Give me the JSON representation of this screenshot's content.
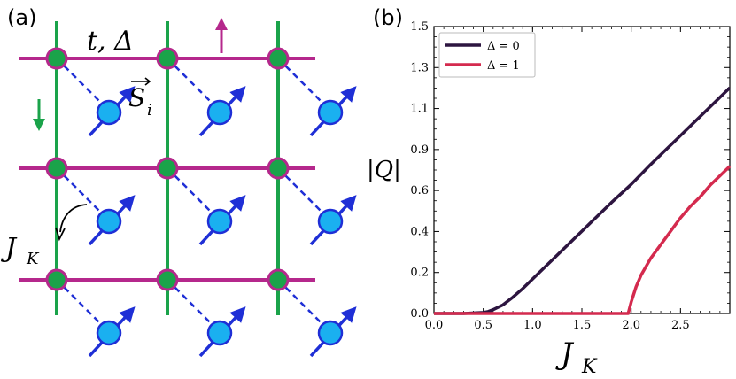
{
  "panel_a": {
    "label": "(a)",
    "hopping_label": "t, Δ",
    "spin_label": "S",
    "spin_subscript": "i",
    "kondo_label": "J",
    "kondo_subscript": "K",
    "colors": {
      "horizontal_bonds": "#b5288c",
      "vertical_bonds": "#1aa34a",
      "site_fill": "#1aa34a",
      "site_stroke": "#b5288c",
      "spin_fill": "#1ab0f0",
      "spin_stroke": "#1f2fd6",
      "arrow_up_magenta": "#b5288c",
      "arrow_down_green": "#1aa34a"
    },
    "icons": [
      "lattice-site-icon",
      "spin-arrow-icon",
      "hopping-direction-arrow-icon"
    ]
  },
  "panel_b": {
    "label": "(b)",
    "chart_data": {
      "type": "line",
      "xlabel": "J",
      "xlabel_subscript": "K",
      "ylabel": "|Q|",
      "xlim": [
        0.0,
        3.0
      ],
      "ylim": [
        0.0,
        1.5
      ],
      "x_ticks": [
        "0.0",
        "0.5",
        "1.0",
        "1.5",
        "2.0",
        "2.5"
      ],
      "y_ticks": [
        "0.0",
        "0.2",
        "0.4",
        "0.6",
        "0.9",
        "1.1",
        "1.3",
        "1.5"
      ],
      "legend_placement": "top-left",
      "series": [
        {
          "name": "Δ = 0",
          "color": "#2d1540",
          "x": [
            0.0,
            0.3,
            0.5,
            0.55,
            0.6,
            0.7,
            0.8,
            0.9,
            1.0,
            1.2,
            1.4,
            1.6,
            1.8,
            2.0,
            2.2,
            2.4,
            2.6,
            2.8,
            3.0
          ],
          "y": [
            0.0,
            0.0,
            0.005,
            0.01,
            0.02,
            0.045,
            0.085,
            0.13,
            0.18,
            0.28,
            0.38,
            0.48,
            0.58,
            0.675,
            0.78,
            0.88,
            0.98,
            1.08,
            1.18
          ]
        },
        {
          "name": "Δ = 1",
          "color": "#d42a4e",
          "x": [
            0.0,
            1.0,
            1.9,
            1.97,
            2.0,
            2.05,
            2.1,
            2.2,
            2.3,
            2.4,
            2.5,
            2.6,
            2.7,
            2.8,
            2.9,
            3.0
          ],
          "y": [
            0.0,
            0.0,
            0.0,
            0.0,
            0.06,
            0.14,
            0.2,
            0.29,
            0.36,
            0.43,
            0.5,
            0.56,
            0.61,
            0.67,
            0.72,
            0.77
          ]
        }
      ]
    }
  }
}
